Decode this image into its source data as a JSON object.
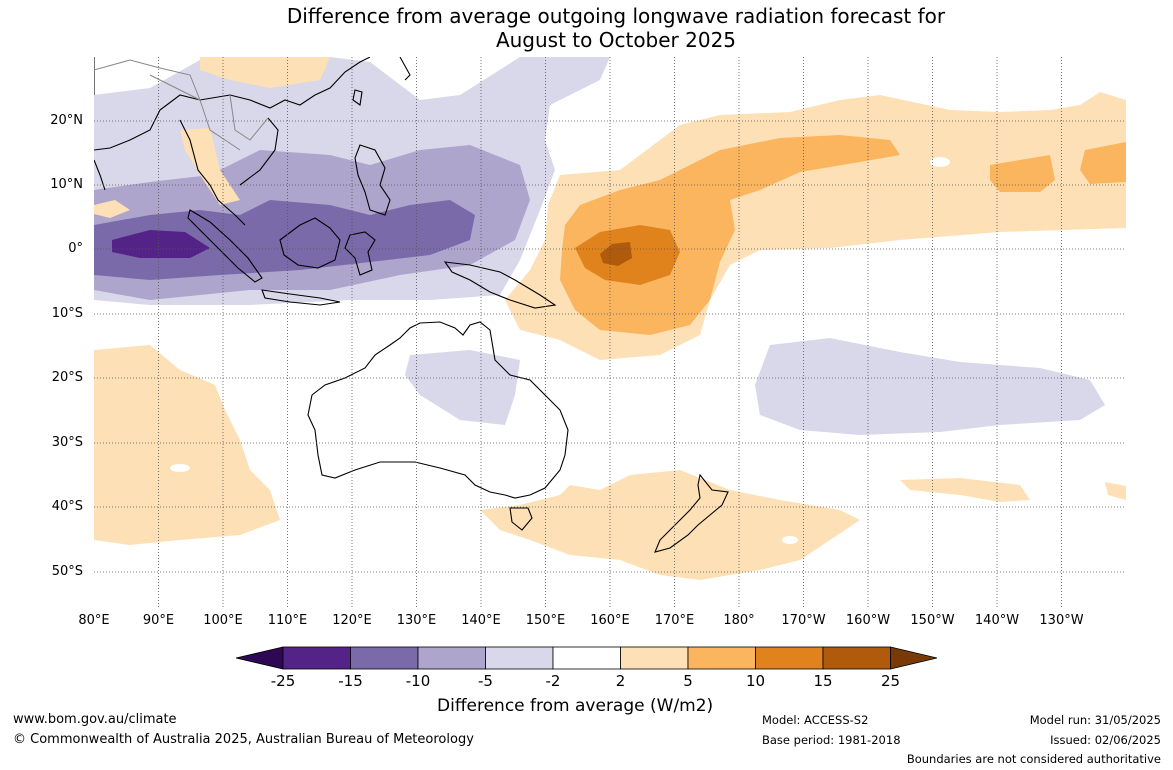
{
  "title": {
    "line1": "Difference from average outgoing longwave radiation forecast for",
    "line2": "August to October 2025"
  },
  "axes": {
    "x_labels": [
      "80°E",
      "90°E",
      "100°E",
      "110°E",
      "120°E",
      "130°E",
      "140°E",
      "150°E",
      "160°E",
      "170°E",
      "180°",
      "170°W",
      "160°W",
      "150°W",
      "140°W",
      "130°W"
    ],
    "y_labels": [
      "20°N",
      "10°N",
      "0°",
      "10°S",
      "20°S",
      "30°S",
      "40°S",
      "50°S"
    ]
  },
  "colorbar": {
    "title": "Difference from average (W/m2)",
    "tick_labels": [
      "-25",
      "-15",
      "-10",
      "-5",
      "-2",
      "2",
      "5",
      "10",
      "15",
      "25"
    ],
    "colors": [
      "#2e0854",
      "#532387",
      "#7b6aaa",
      "#aea5cd",
      "#d9d7ea",
      "#ffffff",
      "#fde0b5",
      "#fbb55e",
      "#e0831c",
      "#b05a0c",
      "#7a3a07"
    ]
  },
  "footer": {
    "website": "www.bom.gov.au/climate",
    "copyright": "© Commonwealth of Australia 2025, Australian Bureau of Meteorology",
    "model": "Model: ACCESS-S2",
    "base_period": "Base period: 1981-2018",
    "model_run": "Model run: 31/05/2025",
    "issued": "Issued: 02/06/2025",
    "disclaimer": "Boundaries are not considered authoritative"
  }
}
